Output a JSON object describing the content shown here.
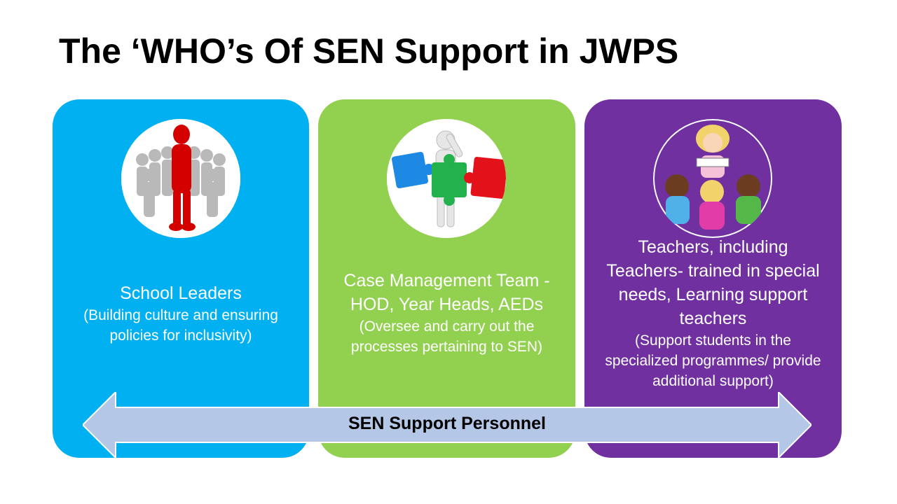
{
  "slide": {
    "title": "The ‘WHO’s Of SEN Support in JWPS"
  },
  "cards": [
    {
      "heading": "School Leaders",
      "description": "(Building culture and ensuring policies for inclusivity)",
      "color": "#00B0F0",
      "image_icon": "leader-among-crowd-icon"
    },
    {
      "heading": "Case Management Team - HOD, Year Heads, AEDs",
      "description": "(Oversee and carry out the processes pertaining to SEN)",
      "color": "#92D050",
      "image_icon": "puzzle-team-icon"
    },
    {
      "heading": "Teachers, including Teachers- trained in special needs, Learning support teachers",
      "description": "(Support students in the specialized programmes/ provide additional support)",
      "color": "#7030A0",
      "image_icon": "teacher-reading-to-children-icon"
    }
  ],
  "arrow": {
    "label": "SEN Support Personnel",
    "color": "#B4C7E7"
  }
}
